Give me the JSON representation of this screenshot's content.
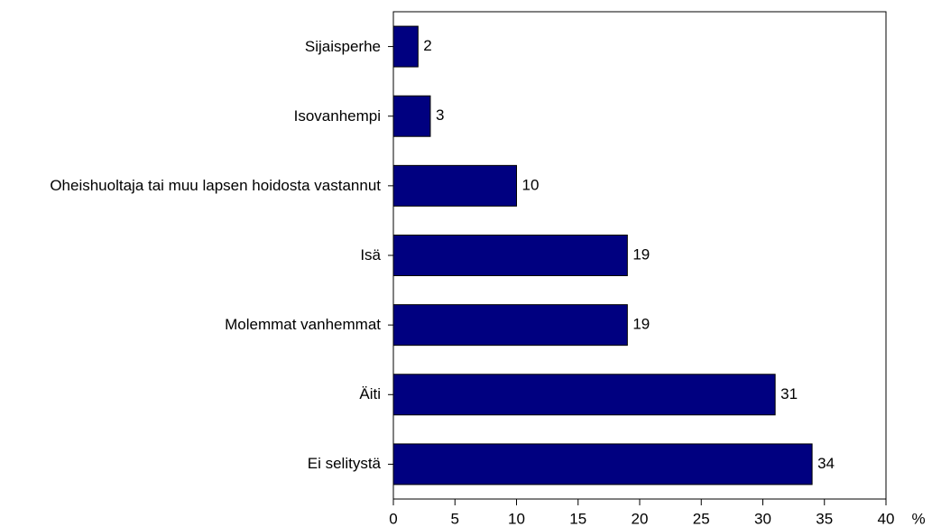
{
  "chart_data": {
    "type": "barh",
    "categories": [
      "Sijaisperhe",
      "Isovanhempi",
      "Oheishuoltaja tai muu lapsen hoidosta vastannut",
      "Isä",
      "Molemmat vanhemmat",
      "Äiti",
      "Ei selitystä"
    ],
    "values": [
      2,
      3,
      10,
      19,
      19,
      31,
      34
    ],
    "color": "#000080",
    "xlim": [
      0,
      40
    ],
    "xticks": [
      0,
      5,
      10,
      15,
      20,
      25,
      30,
      35,
      40
    ],
    "x_label": "%"
  }
}
